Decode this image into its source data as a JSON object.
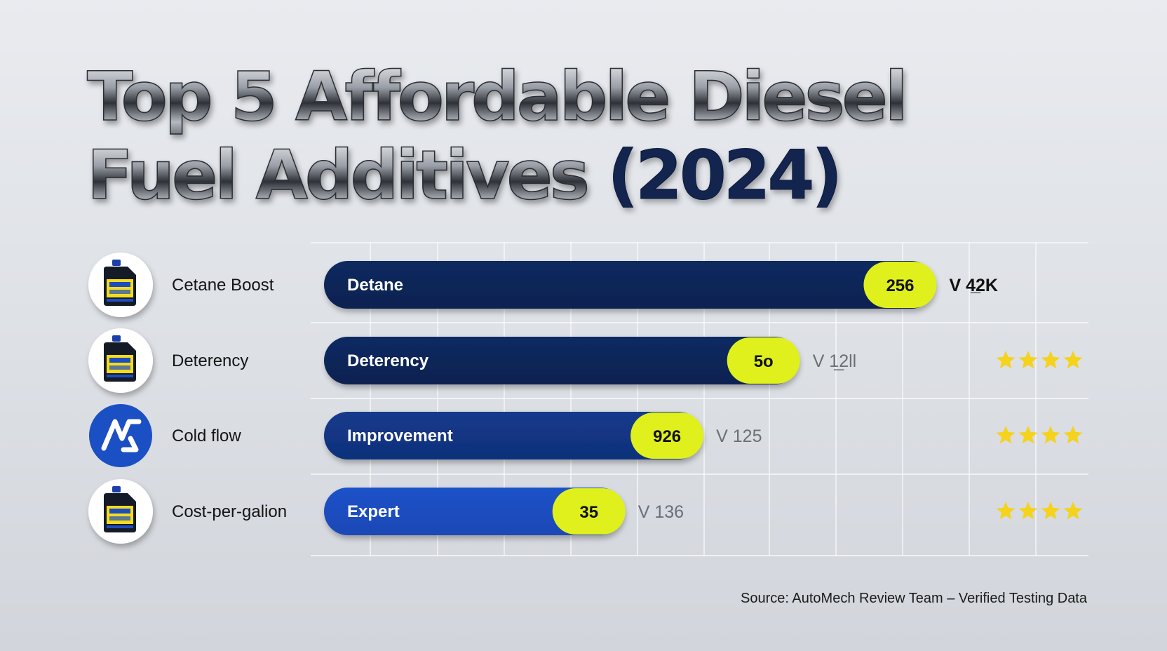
{
  "title": {
    "line1": "Top 5 Affordable Diesel",
    "line2_main": "Fuel Additives",
    "line2_year": "(2024)"
  },
  "colors": {
    "bar_dark": "#0c2250",
    "bar_mid": "#10307a",
    "bar_bright": "#1a48b6",
    "value_pill": "#dff01c",
    "star": "#f5d21c"
  },
  "chart_data": {
    "type": "bar",
    "orientation": "horizontal",
    "categories": [
      "Cetane Boost",
      "Deterency",
      "Cold flow",
      "Cost-per-galion"
    ],
    "bar_labels": [
      "Detane",
      "Deterency",
      "Improvement",
      "Expert"
    ],
    "value_labels": [
      "256",
      "5o",
      "926",
      "35"
    ],
    "bar_length_percent": [
      86.8,
      67.4,
      53.7,
      42.6
    ],
    "side_labels": [
      "V 4̲2K",
      "V 1̲2ll",
      "V 125",
      "V 136"
    ],
    "stars": [
      0,
      4,
      4,
      4
    ],
    "row_icons": [
      "fuel-jug-icon",
      "fuel-jug-icon",
      "brand-logo-icon",
      "fuel-jug-icon"
    ],
    "grid": true,
    "source": "Source: AutoMech Review Team – Verified Testing Data"
  }
}
